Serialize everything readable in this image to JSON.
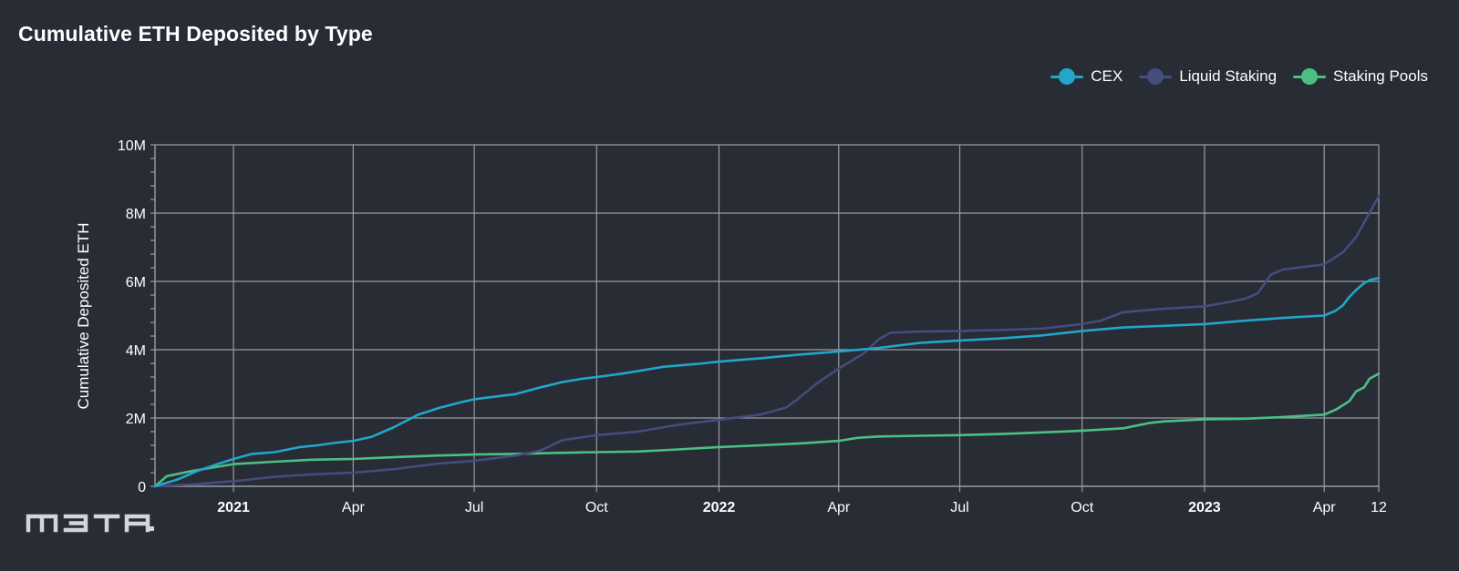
{
  "colors": {
    "background": "#282c35",
    "grid": "#9a9ca3",
    "cex": "#22a6c9",
    "liquid_staking": "#454c7e",
    "staking_pools": "#4cbf85",
    "logo": "#d3d5da"
  },
  "watermark_text": "m3ta.",
  "chart_data": {
    "type": "line",
    "title": "Cumulative ETH Deposited by Type",
    "xlabel": "",
    "ylabel": "Cumulative Deposited ETH",
    "x_range": [
      "2020-11-03",
      "2023-05-12"
    ],
    "ylim": [
      0,
      10000000
    ],
    "y_ticks": [
      {
        "value": 0,
        "label": "0"
      },
      {
        "value": 2000000,
        "label": "2M"
      },
      {
        "value": 4000000,
        "label": "4M"
      },
      {
        "value": 6000000,
        "label": "6M"
      },
      {
        "value": 8000000,
        "label": "8M"
      },
      {
        "value": 10000000,
        "label": "10M"
      }
    ],
    "x_ticks": [
      {
        "date": "2021-01-01",
        "label": "2021",
        "bold": true
      },
      {
        "date": "2021-04-01",
        "label": "Apr",
        "bold": false
      },
      {
        "date": "2021-07-01",
        "label": "Jul",
        "bold": false
      },
      {
        "date": "2021-10-01",
        "label": "Oct",
        "bold": false
      },
      {
        "date": "2022-01-01",
        "label": "2022",
        "bold": true
      },
      {
        "date": "2022-04-01",
        "label": "Apr",
        "bold": false
      },
      {
        "date": "2022-07-01",
        "label": "Jul",
        "bold": false
      },
      {
        "date": "2022-10-01",
        "label": "Oct",
        "bold": false
      },
      {
        "date": "2023-01-01",
        "label": "2023",
        "bold": true
      },
      {
        "date": "2023-04-01",
        "label": "Apr",
        "bold": false
      },
      {
        "date": "2023-05-12",
        "label": "12",
        "bold": false
      }
    ],
    "grid": true,
    "legend_position": "top-right",
    "series": [
      {
        "name": "CEX",
        "color": "#22a6c9",
        "x": [
          "2020-11-03",
          "2020-11-20",
          "2020-12-05",
          "2020-12-20",
          "2021-01-01",
          "2021-01-15",
          "2021-02-01",
          "2021-02-20",
          "2021-03-05",
          "2021-03-20",
          "2021-04-01",
          "2021-04-15",
          "2021-05-01",
          "2021-05-20",
          "2021-06-05",
          "2021-06-20",
          "2021-07-01",
          "2021-07-15",
          "2021-08-01",
          "2021-08-20",
          "2021-09-05",
          "2021-09-20",
          "2021-10-01",
          "2021-10-20",
          "2021-11-05",
          "2021-11-20",
          "2021-12-05",
          "2021-12-20",
          "2022-01-01",
          "2022-02-01",
          "2022-03-01",
          "2022-04-01",
          "2022-05-01",
          "2022-06-01",
          "2022-07-01",
          "2022-08-01",
          "2022-09-01",
          "2022-10-01",
          "2022-11-01",
          "2022-12-01",
          "2023-01-01",
          "2023-02-01",
          "2023-03-01",
          "2023-04-01",
          "2023-04-10",
          "2023-04-15",
          "2023-04-20",
          "2023-04-25",
          "2023-05-01",
          "2023-05-06",
          "2023-05-12"
        ],
        "values": [
          0,
          200000,
          450000,
          650000,
          800000,
          950000,
          1000000,
          1150000,
          1200000,
          1280000,
          1330000,
          1450000,
          1720000,
          2100000,
          2300000,
          2450000,
          2550000,
          2620000,
          2700000,
          2900000,
          3050000,
          3150000,
          3200000,
          3300000,
          3400000,
          3500000,
          3550000,
          3600000,
          3650000,
          3750000,
          3850000,
          3950000,
          4050000,
          4200000,
          4270000,
          4330000,
          4420000,
          4550000,
          4650000,
          4700000,
          4750000,
          4850000,
          4930000,
          5000000,
          5150000,
          5300000,
          5550000,
          5750000,
          5950000,
          6050000,
          6100000
        ]
      },
      {
        "name": "Liquid Staking",
        "color": "#454c7e",
        "x": [
          "2020-11-03",
          "2020-12-01",
          "2021-01-01",
          "2021-02-01",
          "2021-03-01",
          "2021-04-01",
          "2021-05-01",
          "2021-06-01",
          "2021-07-01",
          "2021-08-01",
          "2021-08-20",
          "2021-09-05",
          "2021-10-01",
          "2021-11-01",
          "2021-12-01",
          "2022-01-01",
          "2022-02-01",
          "2022-02-20",
          "2022-03-01",
          "2022-03-15",
          "2022-04-01",
          "2022-04-20",
          "2022-05-01",
          "2022-05-10",
          "2022-06-01",
          "2022-07-01",
          "2022-08-01",
          "2022-09-01",
          "2022-10-01",
          "2022-10-15",
          "2022-11-01",
          "2022-12-01",
          "2023-01-01",
          "2023-01-20",
          "2023-02-01",
          "2023-02-10",
          "2023-02-20",
          "2023-03-01",
          "2023-04-01",
          "2023-04-15",
          "2023-04-25",
          "2023-05-05",
          "2023-05-12"
        ],
        "values": [
          0,
          50000,
          150000,
          280000,
          350000,
          400000,
          500000,
          650000,
          750000,
          900000,
          1050000,
          1350000,
          1500000,
          1600000,
          1800000,
          1950000,
          2100000,
          2300000,
          2550000,
          3000000,
          3450000,
          3900000,
          4300000,
          4500000,
          4530000,
          4550000,
          4580000,
          4620000,
          4750000,
          4850000,
          5100000,
          5200000,
          5270000,
          5400000,
          5500000,
          5650000,
          6200000,
          6350000,
          6500000,
          6850000,
          7300000,
          8000000,
          8500000
        ]
      },
      {
        "name": "Staking Pools",
        "color": "#4cbf85",
        "x": [
          "2020-11-03",
          "2020-11-12",
          "2020-12-01",
          "2021-01-01",
          "2021-02-01",
          "2021-03-01",
          "2021-04-01",
          "2021-05-01",
          "2021-06-01",
          "2021-07-01",
          "2021-08-01",
          "2021-09-01",
          "2021-10-01",
          "2021-11-01",
          "2021-12-01",
          "2022-01-01",
          "2022-02-01",
          "2022-03-01",
          "2022-04-01",
          "2022-04-15",
          "2022-05-01",
          "2022-06-01",
          "2022-07-01",
          "2022-08-01",
          "2022-09-01",
          "2022-10-01",
          "2022-11-01",
          "2022-11-20",
          "2022-12-01",
          "2023-01-01",
          "2023-02-01",
          "2023-03-01",
          "2023-04-01",
          "2023-04-10",
          "2023-04-20",
          "2023-04-25",
          "2023-05-01",
          "2023-05-05",
          "2023-05-12"
        ],
        "values": [
          0,
          300000,
          450000,
          650000,
          720000,
          780000,
          800000,
          850000,
          900000,
          930000,
          950000,
          980000,
          1000000,
          1020000,
          1080000,
          1150000,
          1200000,
          1250000,
          1330000,
          1420000,
          1460000,
          1480000,
          1500000,
          1530000,
          1580000,
          1630000,
          1700000,
          1850000,
          1900000,
          1960000,
          1980000,
          2030000,
          2100000,
          2250000,
          2500000,
          2780000,
          2900000,
          3150000,
          3300000
        ]
      }
    ]
  }
}
